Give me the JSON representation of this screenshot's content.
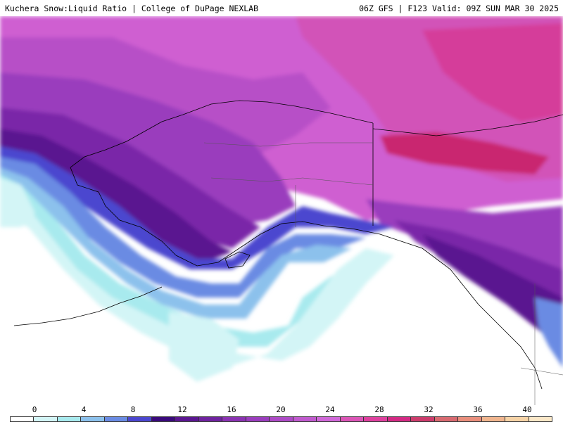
{
  "header": {
    "title_left": "Kuchera Snow:Liquid Ratio | College of DuPage NEXLAB",
    "title_right": "06Z GFS | F123 Valid: 09Z SUN MAR 30 2025"
  },
  "legend": {
    "ticks": [
      "0",
      "4",
      "8",
      "12",
      "16",
      "20",
      "24",
      "28",
      "32",
      "36",
      "40"
    ],
    "colors": [
      "#ffffff",
      "#d3f5f6",
      "#a8eaee",
      "#8cc1ec",
      "#6a8be3",
      "#4b46cf",
      "#3a0a7b",
      "#5a1690",
      "#6f239f",
      "#8a33b2",
      "#9a3dbd",
      "#ad4ac6",
      "#c05ace",
      "#d068d8",
      "#db55b6",
      "#de409e",
      "#d32a84",
      "#cc3c6c",
      "#d86a70",
      "#e98e7c",
      "#f0b58e",
      "#f6d3a6",
      "#fbe8c8"
    ]
  },
  "map": {
    "colors": {
      "ocean_bg": "#ffffff",
      "pale_cyan": "#d3f5f6",
      "cyan": "#a8eaee",
      "light_blue": "#8cc1ec",
      "blue": "#6a8be3",
      "deep_blue": "#4b46cf",
      "indigo": "#3a0a7b",
      "deep_purple": "#5a1690",
      "purple": "#7a25a8",
      "violet": "#9a3dbd",
      "light_violet": "#b74fc7",
      "orchid": "#cf5fd1",
      "magenta": "#d252b8",
      "hot_pink": "#d53c9a",
      "deep_pink": "#c9286f",
      "border_lines": "#000000"
    }
  }
}
